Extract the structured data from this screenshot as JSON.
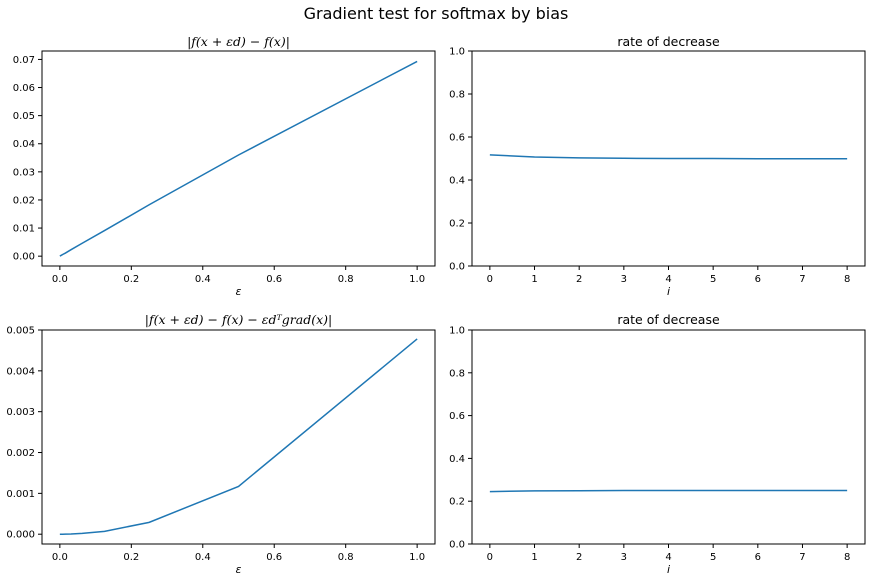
{
  "figure": {
    "suptitle": "Gradient test for softmax by bias"
  },
  "chart_data": [
    {
      "type": "line",
      "title": "|f(x + εd) − f(x)|",
      "xlabel": "ε",
      "ylabel": "",
      "xlim": [
        -0.05,
        1.05
      ],
      "ylim": [
        -0.0035,
        0.073
      ],
      "xticks": [
        0.0,
        0.2,
        0.4,
        0.6,
        0.8,
        1.0
      ],
      "xtick_labels": [
        "0.0",
        "0.2",
        "0.4",
        "0.6",
        "0.8",
        "1.0"
      ],
      "yticks": [
        0.0,
        0.01,
        0.02,
        0.03,
        0.04,
        0.05,
        0.06,
        0.07
      ],
      "ytick_labels": [
        "0.00",
        "0.01",
        "0.02",
        "0.03",
        "0.04",
        "0.05",
        "0.06",
        "0.07"
      ],
      "grid": false,
      "color": "#1f77b4",
      "series": [
        {
          "x": [
            0.0,
            0.0039,
            0.0078,
            0.0156,
            0.03125,
            0.0625,
            0.125,
            0.25,
            0.5,
            1.0
          ],
          "y": [
            0.0,
            0.0003,
            0.0006,
            0.0011,
            0.0023,
            0.0046,
            0.0091,
            0.0183,
            0.036,
            0.0693
          ]
        }
      ]
    },
    {
      "type": "line",
      "title": "rate of decrease",
      "xlabel": "i",
      "ylabel": "",
      "xlim": [
        -0.4,
        8.4
      ],
      "ylim": [
        0.0,
        1.0
      ],
      "xticks": [
        0,
        1,
        2,
        3,
        4,
        5,
        6,
        7,
        8
      ],
      "xtick_labels": [
        "0",
        "1",
        "2",
        "3",
        "4",
        "5",
        "6",
        "7",
        "8"
      ],
      "yticks": [
        0.0,
        0.2,
        0.4,
        0.6,
        0.8,
        1.0
      ],
      "ytick_labels": [
        "0.0",
        "0.2",
        "0.4",
        "0.6",
        "0.8",
        "1.0"
      ],
      "grid": false,
      "color": "#1f77b4",
      "series": [
        {
          "x": [
            0,
            1,
            2,
            3,
            4,
            5,
            6,
            7,
            8
          ],
          "y": [
            0.517,
            0.507,
            0.503,
            0.501,
            0.5,
            0.5,
            0.499,
            0.499,
            0.499
          ]
        }
      ]
    },
    {
      "type": "line",
      "title": "|f(x + εd) − f(x) − εdᵀgrad(x)|",
      "xlabel": "ε",
      "ylabel": "",
      "xlim": [
        -0.05,
        1.05
      ],
      "ylim": [
        -0.00024,
        0.005
      ],
      "xticks": [
        0.0,
        0.2,
        0.4,
        0.6,
        0.8,
        1.0
      ],
      "xtick_labels": [
        "0.0",
        "0.2",
        "0.4",
        "0.6",
        "0.8",
        "1.0"
      ],
      "yticks": [
        0.0,
        0.001,
        0.002,
        0.003,
        0.004,
        0.005
      ],
      "ytick_labels": [
        "0.000",
        "0.001",
        "0.002",
        "0.003",
        "0.004",
        "0.005"
      ],
      "grid": false,
      "color": "#1f77b4",
      "series": [
        {
          "x": [
            0.0,
            0.0039,
            0.0078,
            0.0156,
            0.03125,
            0.0625,
            0.125,
            0.25,
            0.5,
            1.0
          ],
          "y": [
            0.0,
            0.0,
            0.0,
            1e-06,
            5e-06,
            2e-05,
            7e-05,
            0.00029,
            0.00117,
            0.00478
          ]
        }
      ]
    },
    {
      "type": "line",
      "title": "rate of decrease",
      "xlabel": "i",
      "ylabel": "",
      "xlim": [
        -0.4,
        8.4
      ],
      "ylim": [
        0.0,
        1.0
      ],
      "xticks": [
        0,
        1,
        2,
        3,
        4,
        5,
        6,
        7,
        8
      ],
      "xtick_labels": [
        "0",
        "1",
        "2",
        "3",
        "4",
        "5",
        "6",
        "7",
        "8"
      ],
      "yticks": [
        0.0,
        0.2,
        0.4,
        0.6,
        0.8,
        1.0
      ],
      "ytick_labels": [
        "0.0",
        "0.2",
        "0.4",
        "0.6",
        "0.8",
        "1.0"
      ],
      "grid": false,
      "color": "#1f77b4",
      "series": [
        {
          "x": [
            0,
            1,
            2,
            3,
            4,
            5,
            6,
            7,
            8
          ],
          "y": [
            0.245,
            0.248,
            0.249,
            0.25,
            0.25,
            0.25,
            0.25,
            0.25,
            0.25
          ]
        }
      ]
    }
  ]
}
